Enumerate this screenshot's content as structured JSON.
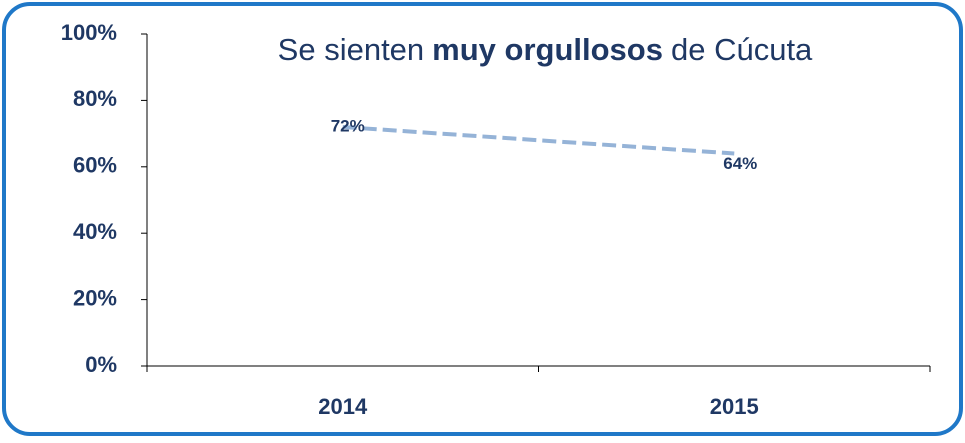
{
  "chart_data": {
    "type": "line",
    "title": [
      "Se sienten",
      "muy orgullosos",
      "de Cúcuta"
    ],
    "categories": [
      "2014",
      "2015"
    ],
    "series": [
      {
        "color": "#95b3d7",
        "values": [
          72,
          64
        ],
        "value_labels": [
          "72%",
          "64%"
        ]
      }
    ],
    "ylim": [
      0,
      100
    ],
    "yticks": [
      {
        "value": 0,
        "label": "0%"
      },
      {
        "value": 20,
        "label": "20%"
      },
      {
        "value": 40,
        "label": "40%"
      },
      {
        "value": 60,
        "label": "60%"
      },
      {
        "value": 80,
        "label": "80%"
      },
      {
        "value": 100,
        "label": "100%"
      }
    ],
    "line_style": "dashed"
  }
}
